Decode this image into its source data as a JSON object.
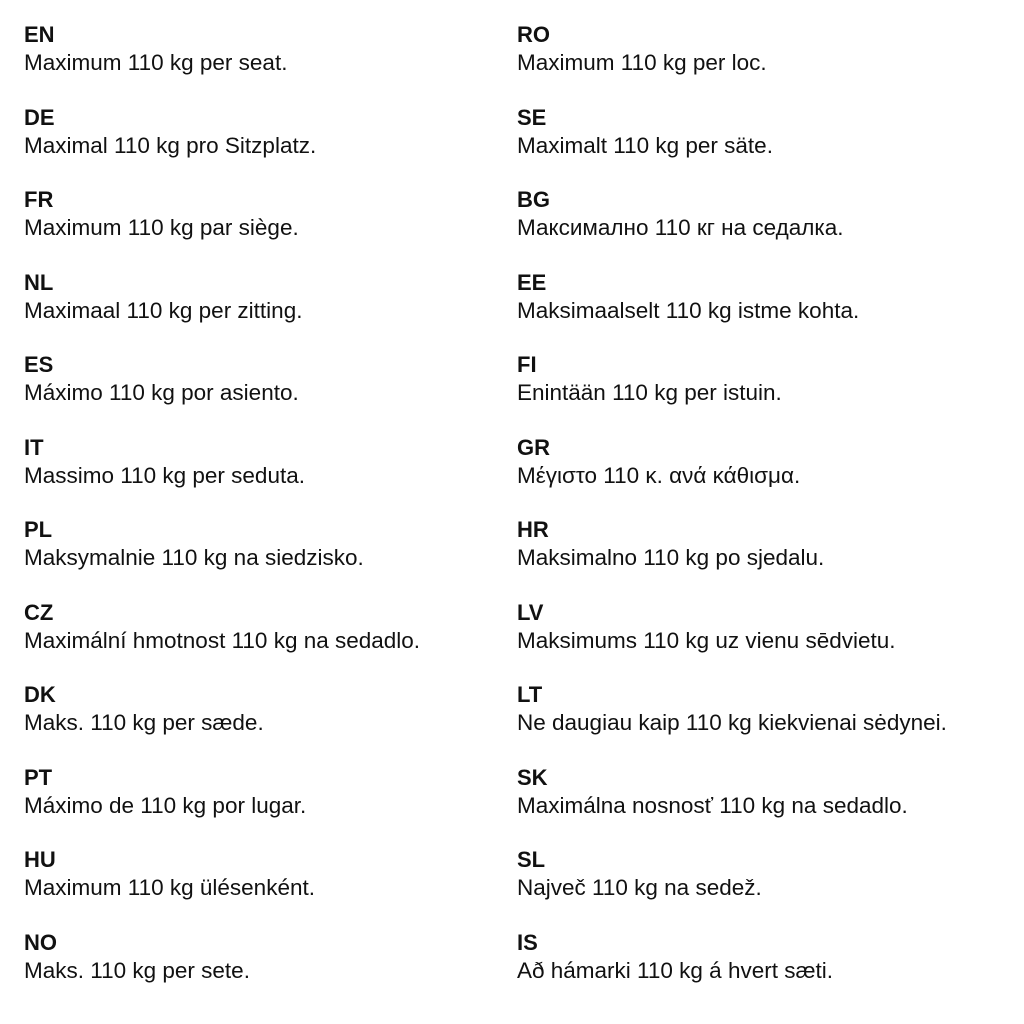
{
  "left": [
    {
      "code": "EN",
      "text": "Maximum 110 kg per seat."
    },
    {
      "code": "DE",
      "text": "Maximal 110 kg pro Sitzplatz."
    },
    {
      "code": "FR",
      "text": "Maximum 110 kg par siège."
    },
    {
      "code": "NL",
      "text": "Maximaal 110 kg per zitting."
    },
    {
      "code": "ES",
      "text": "Máximo 110 kg por asiento."
    },
    {
      "code": "IT",
      "text": "Massimo 110 kg per seduta."
    },
    {
      "code": "PL",
      "text": "Maksymalnie 110 kg na siedzisko."
    },
    {
      "code": "CZ",
      "text": "Maximální hmotnost 110 kg na sedadlo."
    },
    {
      "code": "DK",
      "text": "Maks. 110 kg per sæde."
    },
    {
      "code": "PT",
      "text": "Máximo de 110 kg por lugar."
    },
    {
      "code": "HU",
      "text": "Maximum 110 kg ülésenként."
    },
    {
      "code": "NO",
      "text": "Maks. 110 kg per sete."
    }
  ],
  "right": [
    {
      "code": "RO",
      "text": "Maximum 110 kg per loc."
    },
    {
      "code": "SE",
      "text": "Maximalt 110 kg per säte."
    },
    {
      "code": "BG",
      "text": "Максимално 110 кг на седалка."
    },
    {
      "code": "EE",
      "text": "Maksimaalselt 110 kg istme kohta."
    },
    {
      "code": "FI",
      "text": "Enintään 110 kg per istuin."
    },
    {
      "code": "GR",
      "text": "Μέγιστο 110 κ. ανά κάθισμα."
    },
    {
      "code": "HR",
      "text": "Maksimalno 110 kg po sjedalu."
    },
    {
      "code": "LV",
      "text": "Maksimums 110 kg uz vienu sēdvietu."
    },
    {
      "code": "LT",
      "text": "Ne daugiau kaip 110 kg kiekvienai sėdynei."
    },
    {
      "code": "SK",
      "text": "Maximálna nosnosť 110 kg na sedadlo."
    },
    {
      "code": "SL",
      "text": "Največ 110 kg na sedež."
    },
    {
      "code": "IS",
      "text": "Að hámarki 110 kg á hvert sæti."
    }
  ]
}
